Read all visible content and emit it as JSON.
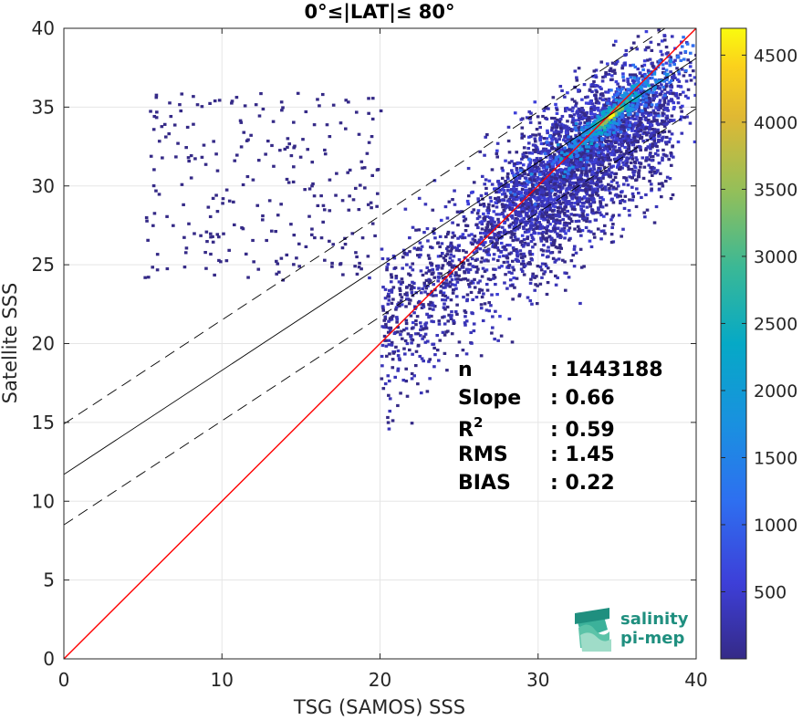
{
  "chart_data": {
    "type": "heatmap",
    "title": "0°≤|LAT|≤ 80°",
    "xlabel": "TSG (SAMOS) SSS",
    "ylabel": "Satellite SSS",
    "xlim": [
      0,
      40
    ],
    "ylim": [
      0,
      40
    ],
    "xticks": [
      0,
      10,
      20,
      30,
      40
    ],
    "yticks": [
      0,
      5,
      10,
      15,
      20,
      25,
      30,
      35,
      40
    ],
    "grid": true,
    "colorbar": {
      "ticks": [
        500,
        1000,
        1500,
        2000,
        2500,
        3000,
        3500,
        4000,
        4500
      ],
      "range": [
        0,
        4700
      ],
      "colormap": "parula"
    },
    "lines": [
      {
        "role": "one-to-one",
        "color": "#ff0000",
        "x": [
          0,
          40
        ],
        "y": [
          0,
          40
        ]
      },
      {
        "role": "regression",
        "color": "#000000",
        "style": "solid",
        "x": [
          0,
          40
        ],
        "y": [
          11.7,
          38.1
        ]
      },
      {
        "role": "regression-upper",
        "color": "#000000",
        "style": "dashed",
        "x": [
          0,
          40
        ],
        "y": [
          14.9,
          41.3
        ]
      },
      {
        "role": "regression-lower",
        "color": "#000000",
        "style": "dashed",
        "x": [
          0,
          40
        ],
        "y": [
          8.5,
          34.9
        ]
      }
    ],
    "density_peak": {
      "x": 35,
      "y": 35,
      "count": 4700
    },
    "stats": [
      {
        "label": "n",
        "sep": ": ",
        "value": "1443188"
      },
      {
        "label": "Slope",
        "sep": ": ",
        "value": "0.66"
      },
      {
        "label": "R",
        "sup": "2",
        "sep": ": ",
        "value": "0.59"
      },
      {
        "label": "RMS",
        "sep": ": ",
        "value": "1.45"
      },
      {
        "label": "BIAS",
        "sep": ": ",
        "value": "0.22"
      }
    ]
  },
  "logo": {
    "line1": "salinity",
    "line2": "pi-mep",
    "icon": "salinity-waves-logo",
    "color": "#1f8f7f"
  }
}
